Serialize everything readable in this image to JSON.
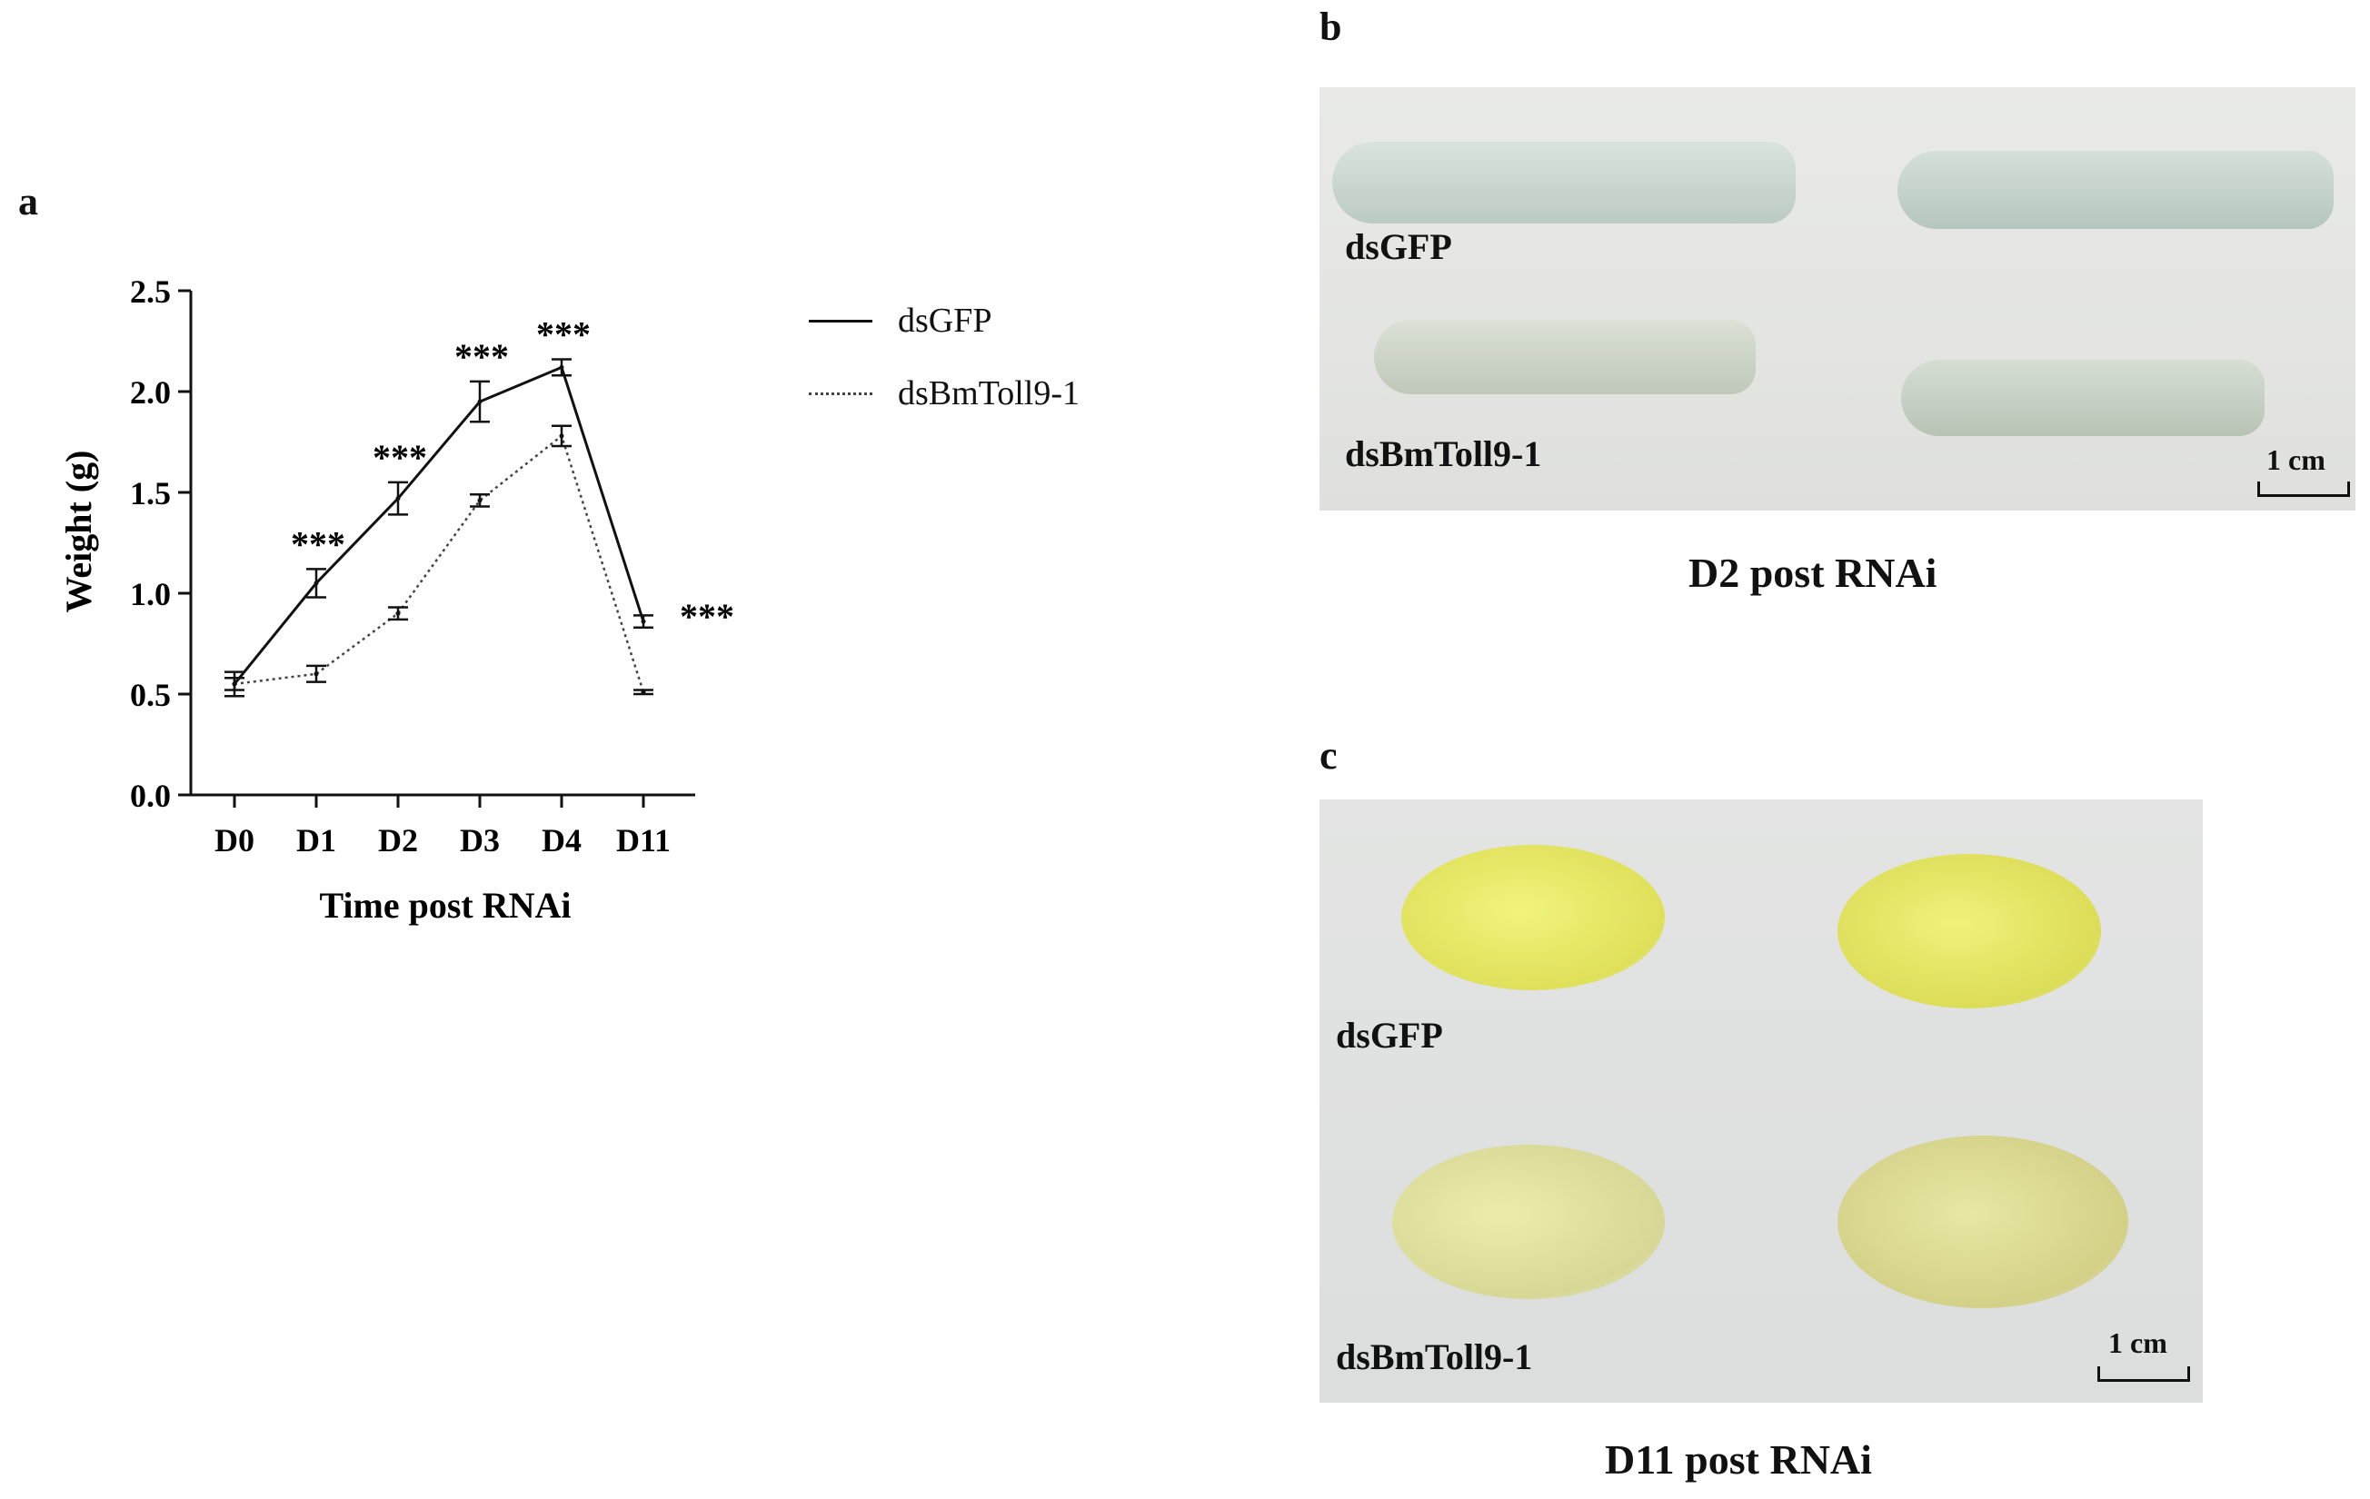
{
  "panels": {
    "a": {
      "letter": "a"
    },
    "b": {
      "letter": "b",
      "label_top": "dsGFP",
      "label_bottom": "dsBmToll9-1",
      "scale": "1 cm",
      "caption": "D2 post RNAi"
    },
    "c": {
      "letter": "c",
      "label_top": "dsGFP",
      "label_bottom": "dsBmToll9-1",
      "scale": "1 cm",
      "caption": "D11 post RNAi"
    }
  },
  "chart_data": {
    "type": "line",
    "xlabel": "Time post RNAi",
    "ylabel": "Weight (g)",
    "ylim": [
      0,
      2.5
    ],
    "yticks": [
      "0.0",
      "0.5",
      "1.0",
      "1.5",
      "2.0",
      "2.5"
    ],
    "categories": [
      "D0",
      "D1",
      "D2",
      "D3",
      "D4",
      "D11"
    ],
    "series": [
      {
        "name": "dsGFP",
        "style": "solid",
        "values": [
          0.55,
          1.05,
          1.47,
          1.95,
          2.12,
          0.86
        ],
        "errors": [
          0.06,
          0.07,
          0.08,
          0.1,
          0.04,
          0.03
        ]
      },
      {
        "name": "dsBmToll9-1",
        "style": "dotted",
        "values": [
          0.55,
          0.6,
          0.9,
          1.46,
          1.78,
          0.51
        ],
        "errors": [
          0.03,
          0.04,
          0.03,
          0.03,
          0.05,
          0.01
        ]
      }
    ],
    "significance": [
      "",
      "***",
      "***",
      "***",
      "***",
      "***"
    ],
    "legend_position": "right"
  },
  "colors": {
    "line": "#111111",
    "dotted_line": "#444444",
    "larva": "#c9d6cf",
    "cocoon_gfp": "#e8ea6a",
    "cocoon_rnai": "#e6e6ad"
  }
}
